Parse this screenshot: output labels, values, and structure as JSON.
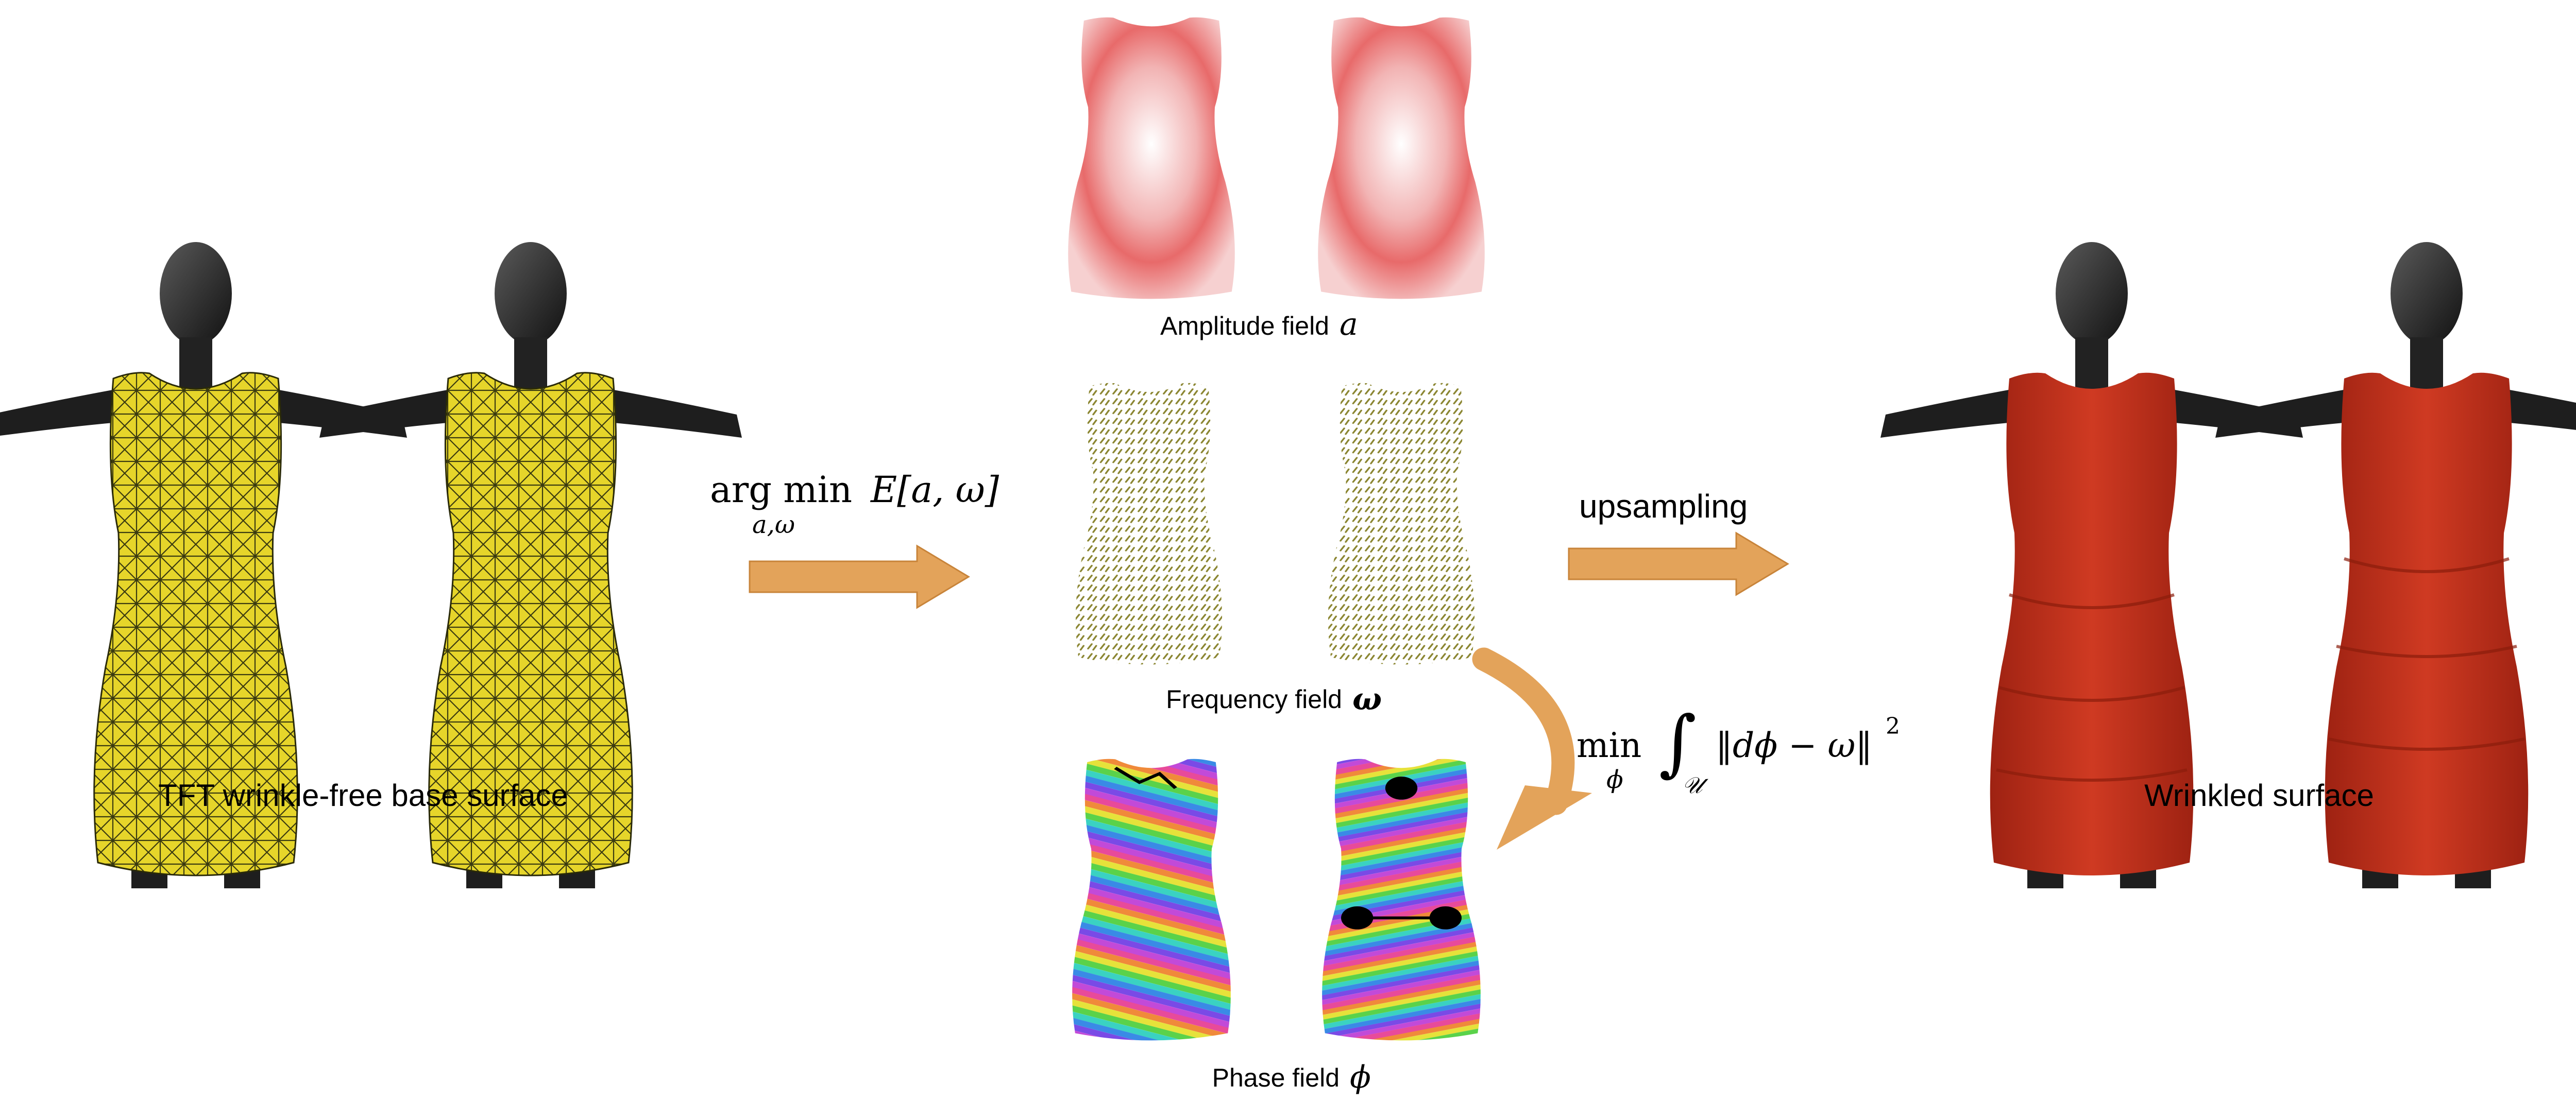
{
  "captions": {
    "base": "TFT wrinkle-free base surface",
    "wrinkled": "Wrinkled surface",
    "amplitude_label": "Amplitude field",
    "amplitude_symbol": "a",
    "frequency_label": "Frequency field",
    "frequency_symbol": "ω",
    "phase_label": "Phase field",
    "phase_symbol": "ϕ"
  },
  "equations": {
    "argmin_main": "arg min",
    "argmin_energy": "E[a, ω]",
    "argmin_sub": "a,ω",
    "upsampling": "upsampling",
    "min_main": "min",
    "min_sub": "ϕ",
    "integral": "∫",
    "integral_domain": "𝒰",
    "integrand": "‖dϕ − ω‖",
    "integrand_power": "2"
  },
  "colors": {
    "mannequin": "#222222",
    "base_mesh": "#e6d52a",
    "wrinkled_dress": "#c8301c",
    "amplitude": "#e86a6a",
    "frequency": "#8a8530",
    "arrow": "#e3a35a"
  },
  "icons": [
    "mannequin",
    "dress",
    "arrow"
  ]
}
